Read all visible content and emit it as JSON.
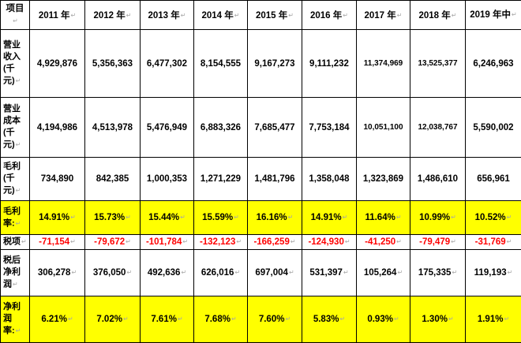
{
  "return_mark": "↵",
  "header": {
    "item_label": "项目",
    "years": [
      "2011 年",
      "2012 年",
      "2013 年",
      "2014 年",
      "2015 年",
      "2016 年",
      "2017 年",
      "2018 年",
      "2019 年中"
    ]
  },
  "rows": [
    {
      "label": "营业收入(千元)",
      "values": [
        "4,929,876",
        "5,356,363",
        "6,477,302",
        "8,154,555",
        "9,167,273",
        "9,111,232",
        "11,374,969",
        "13,525,377",
        "6,246,963"
      ]
    },
    {
      "label": "营业成本(千元)",
      "values": [
        "4,194,986",
        "4,513,978",
        "5,476,949",
        "6,883,326",
        "7,685,477",
        "7,753,184",
        "10,051,100",
        "12,038,767",
        "5,590,002"
      ]
    },
    {
      "label": "毛利(千元)",
      "values": [
        "734,890",
        "842,385",
        "1,000,353",
        "1,271,229",
        "1,481,796",
        "1,358,048",
        "1,323,869",
        "1,486,610",
        "656,961"
      ]
    },
    {
      "label": "毛利率:",
      "values": [
        "14.91%",
        "15.73%",
        "15.44%",
        "15.59%",
        "16.16%",
        "14.91%",
        "11.64%",
        "10.99%",
        "10.52%"
      ]
    },
    {
      "label": "税项",
      "values": [
        "-71,154",
        "-79,672",
        "-101,784",
        "-132,123",
        "-166,259",
        "-124,930",
        "-41,250",
        "-79,479",
        "-31,769"
      ]
    },
    {
      "label": "税后净利润",
      "values": [
        "306,278",
        "376,050",
        "492,636",
        "626,016",
        "697,004",
        "531,397",
        "105,264",
        "175,335",
        "119,193"
      ]
    },
    {
      "label": "净利润率:",
      "values": [
        "6.21%",
        "7.02%",
        "7.61%",
        "7.68%",
        "7.60%",
        "5.83%",
        "0.93%",
        "1.30%",
        "1.91%"
      ]
    }
  ],
  "colors": {
    "highlight": "#ffff00",
    "negative": "#ff0000",
    "border": "#000000"
  }
}
